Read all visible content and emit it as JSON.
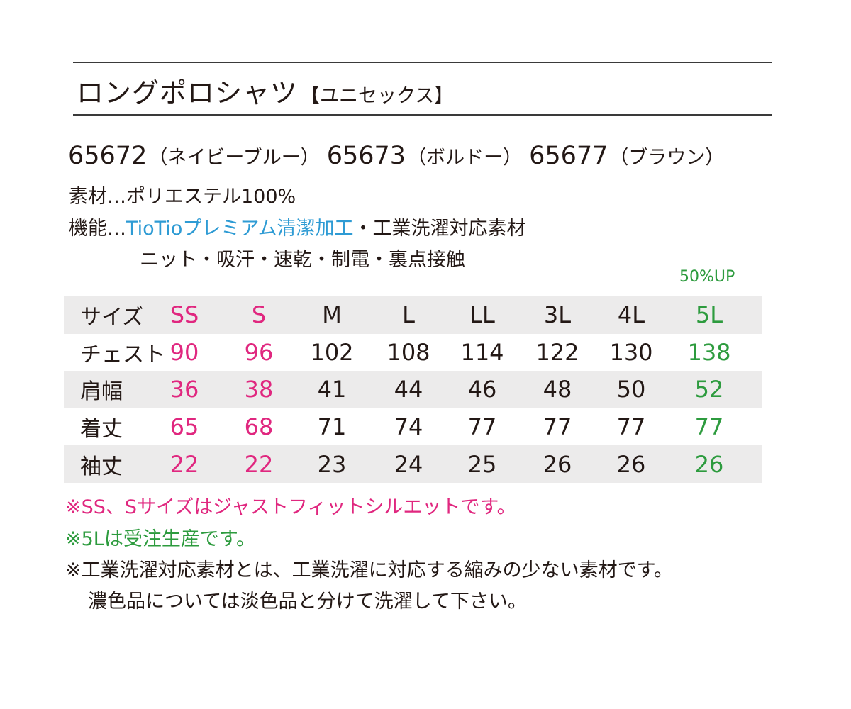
{
  "title": {
    "main": "ロングポロシャツ",
    "sub": "【ユニセックス】"
  },
  "products": [
    {
      "code": "65672",
      "color": "（ネイビーブルー）"
    },
    {
      "code": "65673",
      "color": "（ボルドー）"
    },
    {
      "code": "65677",
      "color": "（ブラウン）"
    }
  ],
  "specs": {
    "material": "素材…ポリエステル100%",
    "function_label": "機能…",
    "function_highlight": "TioTioプレミアム清潔加工",
    "function_rest": "・工業洗濯対応素材",
    "function_line2": "ニット・吸汗・速乾・制電・裏点接触"
  },
  "up_note": "50%UP",
  "colors": {
    "pink": "#e0277f",
    "green": "#2d9b3e",
    "blue": "#2e9bd4",
    "row_shade": "#ecebeb",
    "text": "#231815"
  },
  "size_table": {
    "header": {
      "label": "サイズ",
      "values": [
        "SS",
        "S",
        "M",
        "L",
        "LL",
        "3L",
        "4L",
        "5L"
      ]
    },
    "rows": [
      {
        "label": "チェスト",
        "values": [
          "90",
          "96",
          "102",
          "108",
          "114",
          "122",
          "130",
          "138"
        ]
      },
      {
        "label": "肩幅",
        "values": [
          "36",
          "38",
          "41",
          "44",
          "46",
          "48",
          "50",
          "52"
        ]
      },
      {
        "label": "着丈",
        "values": [
          "65",
          "68",
          "71",
          "74",
          "77",
          "77",
          "77",
          "77"
        ]
      },
      {
        "label": "袖丈",
        "values": [
          "22",
          "22",
          "23",
          "24",
          "25",
          "26",
          "26",
          "26"
        ]
      }
    ]
  },
  "notes": {
    "n1": "※SS、Sサイズはジャストフィットシルエットです。",
    "n2": "※5Lは受注生産です。",
    "n3": "※工業洗濯対応素材とは、工業洗濯に対応する縮みの少ない素材です。",
    "n4": "濃色品については淡色品と分けて洗濯して下さい。"
  }
}
